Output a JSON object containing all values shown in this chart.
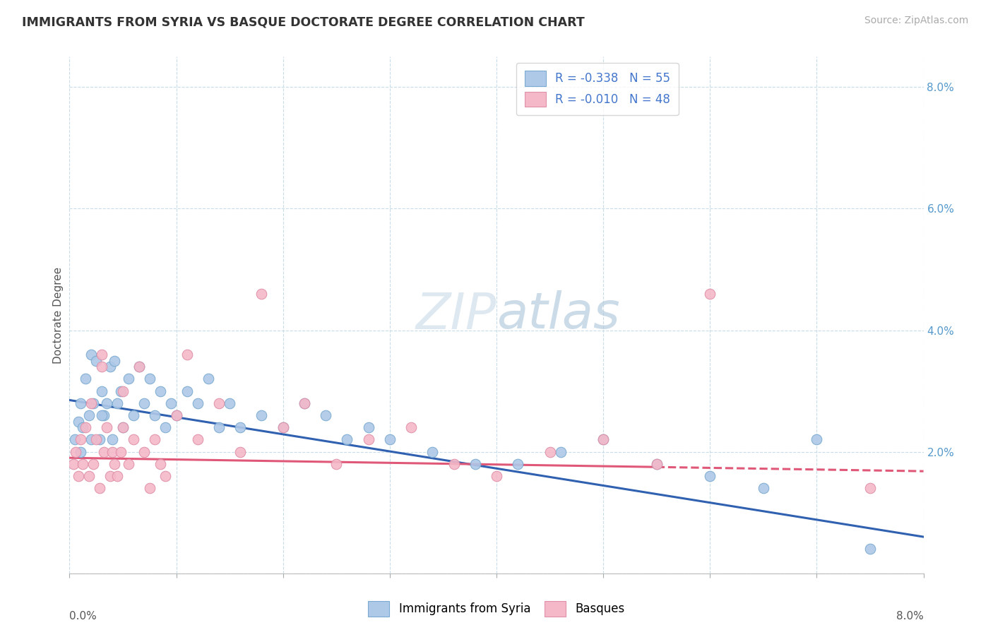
{
  "title": "IMMIGRANTS FROM SYRIA VS BASQUE DOCTORATE DEGREE CORRELATION CHART",
  "source": "Source: ZipAtlas.com",
  "ylabel": "Doctorate Degree",
  "xlim": [
    0.0,
    8.0
  ],
  "ylim": [
    0.0,
    8.5
  ],
  "ytick_vals": [
    0.0,
    2.0,
    4.0,
    6.0,
    8.0
  ],
  "xtick_vals": [
    0.0,
    1.0,
    2.0,
    3.0,
    4.0,
    5.0,
    6.0,
    7.0,
    8.0
  ],
  "legend1_label": "R = -0.338   N = 55",
  "legend2_label": "R = -0.010   N = 48",
  "blue_fill": "#aec8e8",
  "blue_edge": "#7aaad0",
  "pink_fill": "#f4b8c8",
  "pink_edge": "#e090a8",
  "blue_line_color": "#3060b0",
  "pink_line_color": "#e05878",
  "watermark_color": "#dce8f4",
  "syria_x": [
    0.05,
    0.08,
    0.1,
    0.12,
    0.15,
    0.18,
    0.2,
    0.22,
    0.25,
    0.28,
    0.3,
    0.32,
    0.35,
    0.38,
    0.4,
    0.42,
    0.45,
    0.48,
    0.5,
    0.55,
    0.6,
    0.65,
    0.7,
    0.75,
    0.8,
    0.85,
    0.9,
    0.95,
    1.0,
    1.1,
    1.2,
    1.3,
    1.4,
    1.5,
    1.6,
    1.8,
    2.0,
    2.2,
    2.4,
    2.6,
    2.8,
    3.0,
    3.4,
    3.8,
    4.2,
    4.6,
    5.0,
    5.5,
    6.0,
    6.5,
    7.0,
    7.5,
    0.1,
    0.2,
    0.3
  ],
  "syria_y": [
    2.2,
    2.5,
    2.8,
    2.4,
    3.2,
    2.6,
    3.6,
    2.8,
    3.5,
    2.2,
    3.0,
    2.6,
    2.8,
    3.4,
    2.2,
    3.5,
    2.8,
    3.0,
    2.4,
    3.2,
    2.6,
    3.4,
    2.8,
    3.2,
    2.6,
    3.0,
    2.4,
    2.8,
    2.6,
    3.0,
    2.8,
    3.2,
    2.4,
    2.8,
    2.4,
    2.6,
    2.4,
    2.8,
    2.6,
    2.2,
    2.4,
    2.2,
    2.0,
    1.8,
    1.8,
    2.0,
    2.2,
    1.8,
    1.6,
    1.4,
    2.2,
    0.4,
    2.0,
    2.2,
    2.6
  ],
  "basque_x": [
    0.04,
    0.06,
    0.08,
    0.1,
    0.12,
    0.15,
    0.18,
    0.2,
    0.22,
    0.25,
    0.28,
    0.3,
    0.32,
    0.35,
    0.38,
    0.4,
    0.42,
    0.45,
    0.48,
    0.5,
    0.55,
    0.6,
    0.65,
    0.7,
    0.75,
    0.8,
    0.85,
    0.9,
    1.0,
    1.1,
    1.2,
    1.4,
    1.6,
    1.8,
    2.0,
    2.2,
    2.5,
    2.8,
    3.2,
    3.6,
    4.0,
    4.5,
    5.0,
    5.5,
    6.0,
    7.5,
    0.3,
    0.5
  ],
  "basque_y": [
    1.8,
    2.0,
    1.6,
    2.2,
    1.8,
    2.4,
    1.6,
    2.8,
    1.8,
    2.2,
    1.4,
    3.6,
    2.0,
    2.4,
    1.6,
    2.0,
    1.8,
    1.6,
    2.0,
    2.4,
    1.8,
    2.2,
    3.4,
    2.0,
    1.4,
    2.2,
    1.8,
    1.6,
    2.6,
    3.6,
    2.2,
    2.8,
    2.0,
    4.6,
    2.4,
    2.8,
    1.8,
    2.2,
    2.4,
    1.8,
    1.6,
    2.0,
    2.2,
    1.8,
    4.6,
    1.4,
    3.4,
    3.0
  ],
  "trendline_syria_x0": 0.0,
  "trendline_syria_y0": 2.85,
  "trendline_syria_x1": 8.0,
  "trendline_syria_y1": 0.6,
  "trendline_basque_x0": 0.0,
  "trendline_basque_y0": 1.9,
  "trendline_basque_x1": 8.0,
  "trendline_basque_y1": 1.68,
  "trendline_basque_dash_start": 5.5,
  "marker_size": 110
}
